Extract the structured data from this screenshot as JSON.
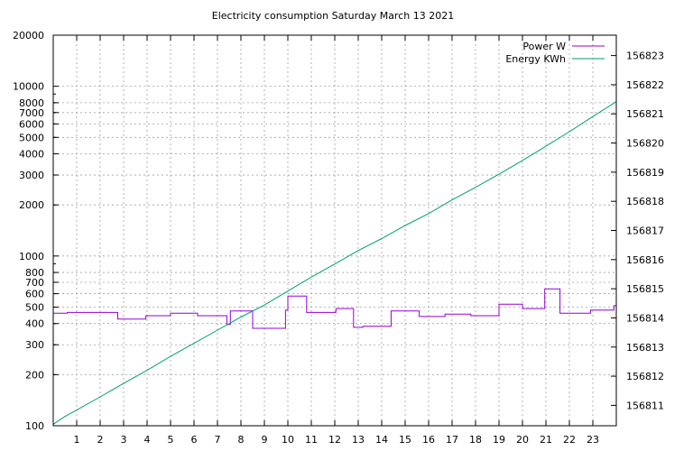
{
  "chart_data": {
    "type": "line",
    "title": "Electricity consumption Saturday March 13 2021",
    "grid": true,
    "legend_position": "top-right",
    "x": {
      "ticks": [
        1,
        2,
        3,
        4,
        5,
        6,
        7,
        8,
        9,
        10,
        11,
        12,
        13,
        14,
        15,
        16,
        17,
        18,
        19,
        20,
        21,
        22,
        23
      ],
      "range": [
        0,
        24
      ]
    },
    "y_left": {
      "scale": "log",
      "range": [
        100,
        20000
      ],
      "ticks": [
        100,
        200,
        300,
        400,
        500,
        600,
        700,
        800,
        1000,
        2000,
        3000,
        4000,
        5000,
        6000,
        7000,
        8000,
        10000,
        20000
      ]
    },
    "y_right": {
      "range": [
        156810.3,
        156823.7
      ],
      "ticks": [
        156811,
        156812,
        156813,
        156814,
        156815,
        156816,
        156817,
        156818,
        156819,
        156820,
        156821,
        156822,
        156823
      ]
    },
    "series": [
      {
        "name": "Power W",
        "color": "#9400D3",
        "axis": "left",
        "step": true,
        "points": [
          [
            0,
            460
          ],
          [
            0.6,
            460
          ],
          [
            0.6,
            465
          ],
          [
            2.75,
            465
          ],
          [
            2.75,
            425
          ],
          [
            3.95,
            425
          ],
          [
            3.95,
            445
          ],
          [
            5.0,
            445
          ],
          [
            5.0,
            460
          ],
          [
            6.15,
            460
          ],
          [
            6.15,
            445
          ],
          [
            7.4,
            445
          ],
          [
            7.4,
            395
          ],
          [
            7.55,
            395
          ],
          [
            7.55,
            475
          ],
          [
            8.5,
            475
          ],
          [
            8.5,
            375
          ],
          [
            9.9,
            375
          ],
          [
            9.9,
            480
          ],
          [
            10.0,
            480
          ],
          [
            10.0,
            580
          ],
          [
            10.8,
            580
          ],
          [
            10.8,
            465
          ],
          [
            12.05,
            465
          ],
          [
            12.05,
            490
          ],
          [
            12.8,
            490
          ],
          [
            12.8,
            380
          ],
          [
            13.2,
            380
          ],
          [
            13.2,
            385
          ],
          [
            14.4,
            385
          ],
          [
            14.4,
            475
          ],
          [
            15.6,
            475
          ],
          [
            15.6,
            440
          ],
          [
            16.7,
            440
          ],
          [
            16.7,
            455
          ],
          [
            17.8,
            455
          ],
          [
            17.8,
            445
          ],
          [
            19.0,
            445
          ],
          [
            19.0,
            520
          ],
          [
            20.0,
            520
          ],
          [
            20.0,
            490
          ],
          [
            20.95,
            490
          ],
          [
            20.95,
            640
          ],
          [
            21.6,
            640
          ],
          [
            21.6,
            460
          ],
          [
            22.9,
            460
          ],
          [
            22.9,
            480
          ],
          [
            23.9,
            480
          ],
          [
            23.9,
            510
          ],
          [
            24.0,
            510
          ]
        ]
      },
      {
        "name": "Energy KWh",
        "color": "#009E73",
        "axis": "right",
        "step": false,
        "points": [
          [
            0,
            156810.35
          ],
          [
            0.5,
            156810.62
          ],
          [
            1,
            156810.84
          ],
          [
            2,
            156811.29
          ],
          [
            3,
            156811.75
          ],
          [
            4,
            156812.2
          ],
          [
            5,
            156812.68
          ],
          [
            6,
            156813.13
          ],
          [
            7,
            156813.58
          ],
          [
            8,
            156814.03
          ],
          [
            9,
            156814.44
          ],
          [
            10,
            156814.92
          ],
          [
            11,
            156815.4
          ],
          [
            12,
            156815.85
          ],
          [
            13,
            156816.31
          ],
          [
            14,
            156816.72
          ],
          [
            15,
            156817.17
          ],
          [
            16,
            156817.58
          ],
          [
            17,
            156818.05
          ],
          [
            18,
            156818.48
          ],
          [
            19,
            156818.93
          ],
          [
            20,
            156819.4
          ],
          [
            21,
            156819.89
          ],
          [
            22,
            156820.39
          ],
          [
            23,
            156820.91
          ],
          [
            24,
            156821.42
          ]
        ]
      }
    ]
  }
}
